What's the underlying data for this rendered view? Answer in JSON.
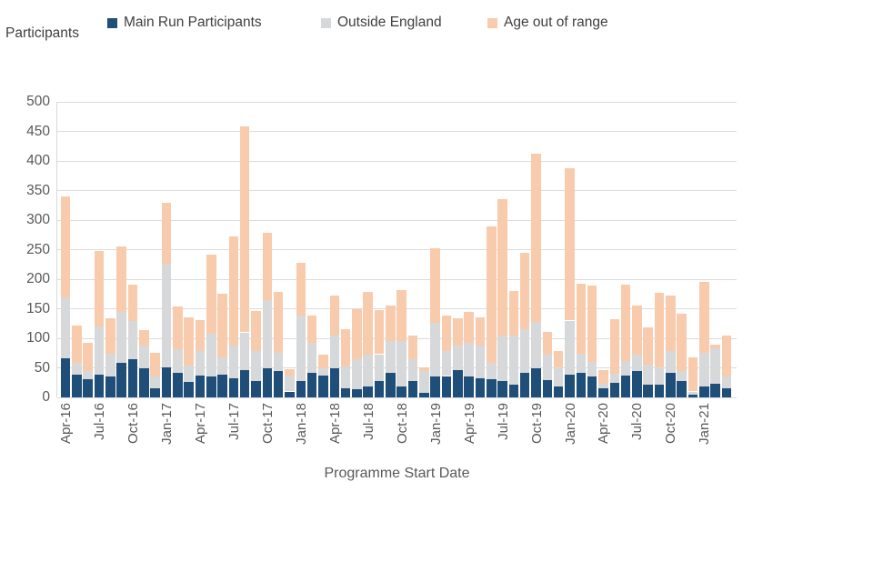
{
  "axis_title_y": "Participants",
  "axis_title_x": "Programme Start Date",
  "legend": [
    {
      "label": "Main Run Participants",
      "color": "#1f4e79"
    },
    {
      "label": "Outside England",
      "color": "#d6d8da"
    },
    {
      "label": "Age out of range",
      "color": "#f8cbad"
    }
  ],
  "chart_data": {
    "type": "bar",
    "subtype": "stacked-vertical",
    "title": "",
    "xlabel": "Programme Start Date",
    "ylabel": "Participants",
    "ylim": [
      0,
      500
    ],
    "yticks": [
      0,
      50,
      100,
      150,
      200,
      250,
      300,
      350,
      400,
      450,
      500
    ],
    "grid": "horizontal",
    "legend_position": "top",
    "x_label_every": 3,
    "categories": [
      "Apr-16",
      "May-16",
      "Jun-16",
      "Jul-16",
      "Aug-16",
      "Sep-16",
      "Oct-16",
      "Nov-16",
      "Dec-16",
      "Jan-17",
      "Feb-17",
      "Mar-17",
      "Apr-17",
      "May-17",
      "Jun-17",
      "Jul-17",
      "Aug-17",
      "Sep-17",
      "Oct-17",
      "Nov-17",
      "Dec-17",
      "Jan-18",
      "Feb-18",
      "Mar-18",
      "Apr-18",
      "May-18",
      "Jun-18",
      "Jul-18",
      "Aug-18",
      "Sep-18",
      "Oct-18",
      "Nov-18",
      "Dec-18",
      "Jan-19",
      "Feb-19",
      "Mar-19",
      "Apr-19",
      "May-19",
      "Jun-19",
      "Jul-19",
      "Aug-19",
      "Sep-19",
      "Oct-19",
      "Nov-19",
      "Dec-19",
      "Jan-20",
      "Feb-20",
      "Mar-20",
      "Apr-20",
      "May-20",
      "Jun-20",
      "Jul-20",
      "Aug-20",
      "Sep-20",
      "Oct-20",
      "Nov-20",
      "Dec-20",
      "Jan-21",
      "Feb-21",
      "Mar-21"
    ],
    "series": [
      {
        "name": "Main Run Participants",
        "color": "#1f4e79",
        "values": [
          66,
          38,
          31,
          38,
          36,
          59,
          64,
          49,
          16,
          51,
          42,
          26,
          37,
          36,
          39,
          33,
          47,
          28,
          49,
          44,
          10,
          28,
          41,
          37,
          49,
          16,
          14,
          19,
          27,
          42,
          19,
          28,
          8,
          36,
          36,
          46,
          36,
          33,
          31,
          28,
          21,
          41,
          49,
          29,
          18,
          39,
          41,
          35,
          15,
          25,
          37,
          44,
          21,
          21,
          42,
          28,
          5,
          19,
          23,
          15
        ]
      },
      {
        "name": "Outside England",
        "color": "#d6d8da",
        "values": [
          104,
          20,
          13,
          82,
          38,
          86,
          65,
          38,
          20,
          175,
          40,
          28,
          42,
          72,
          28,
          55,
          63,
          51,
          116,
          32,
          27,
          110,
          52,
          12,
          56,
          36,
          51,
          53,
          46,
          53,
          76,
          36,
          36,
          90,
          43,
          42,
          56,
          55,
          28,
          77,
          84,
          74,
          79,
          43,
          32,
          91,
          33,
          25,
          8,
          15,
          25,
          29,
          35,
          29,
          36,
          17,
          5,
          57,
          60,
          21
        ]
      },
      {
        "name": "Age out of range",
        "color": "#f8cbad",
        "values": [
          170,
          64,
          48,
          128,
          60,
          111,
          62,
          27,
          39,
          103,
          72,
          82,
          52,
          133,
          108,
          185,
          348,
          67,
          114,
          102,
          10,
          89,
          45,
          24,
          67,
          63,
          85,
          107,
          74,
          60,
          87,
          40,
          7,
          126,
          60,
          46,
          53,
          48,
          231,
          231,
          75,
          130,
          285,
          39,
          28,
          258,
          119,
          130,
          23,
          92,
          129,
          82,
          62,
          127,
          95,
          96,
          57,
          119,
          7,
          68
        ]
      }
    ]
  },
  "layout_colors": {
    "gridline": "#dcdcdc",
    "tick_text": "#595959",
    "legend_text": "#404040"
  }
}
